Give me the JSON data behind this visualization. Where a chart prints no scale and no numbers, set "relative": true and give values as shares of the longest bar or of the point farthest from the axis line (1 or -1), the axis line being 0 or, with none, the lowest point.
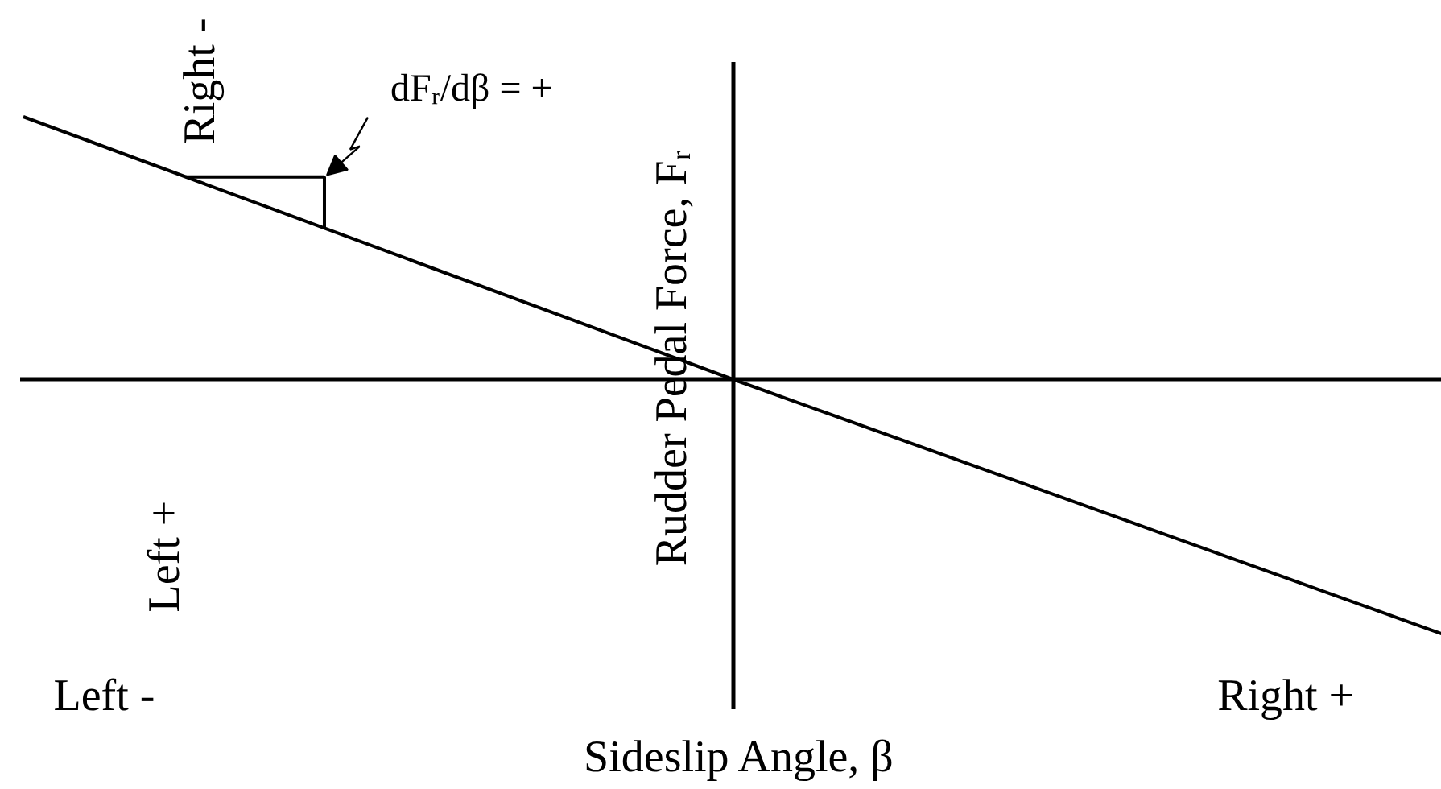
{
  "chart_data": {
    "type": "line",
    "xlabel": "Sideslip Angle, β",
    "ylabel": "Rudder Pedal Force, Fᵣ",
    "categories": [
      null,
      null,
      null
    ],
    "relative": true,
    "values": [
      1,
      0,
      -0.97
    ],
    "color": "#000000",
    "line_style": "solid",
    "annotations": [
      "Right -",
      "Left +",
      "Left -",
      "Right +",
      "dFᵣ/dβ = +"
    ]
  }
}
